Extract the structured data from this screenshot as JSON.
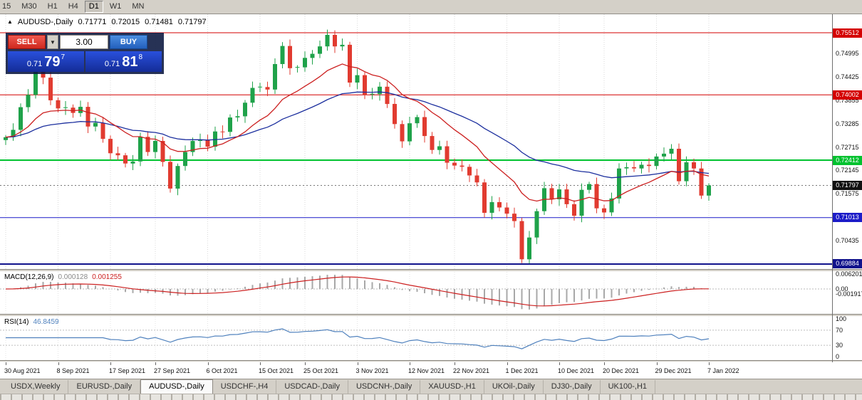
{
  "toolbar": {
    "timeframes": [
      {
        "label": "15",
        "active": false
      },
      {
        "label": "M30",
        "active": false
      },
      {
        "label": "H1",
        "active": false
      },
      {
        "label": "H4",
        "active": false
      },
      {
        "label": "D1",
        "active": true
      },
      {
        "label": "W1",
        "active": false
      },
      {
        "label": "MN",
        "active": false
      }
    ]
  },
  "chart": {
    "collapse_icon": "▲",
    "symbol": "AUDUSD-,Daily",
    "open": "0.71771",
    "high": "0.72015",
    "low": "0.71481",
    "close": "0.71797",
    "colors": {
      "bull": "#1fa24a",
      "bear": "#e13b30",
      "ma_fast": "#cc2020",
      "ma_slow": "#1c2f9e"
    },
    "hlines": [
      {
        "price": 0.75512,
        "label": "0.75512",
        "color": "#d40000",
        "width": 1
      },
      {
        "price": 0.74002,
        "label": "0.74002",
        "color": "#d40000",
        "width": 1
      },
      {
        "price": 0.72412,
        "label": "0.72412",
        "color": "#00c22f",
        "width": 2
      },
      {
        "price": 0.71013,
        "label": "0.71013",
        "color": "#1c1cc8",
        "width": 1
      },
      {
        "price": 0.69884,
        "label": "0.69884",
        "color": "#10128c",
        "width": 2
      }
    ],
    "current_price": {
      "value": 0.71797,
      "label": "0.71797",
      "color": "#111111"
    },
    "price_axis": {
      "labels": [
        "0.74995",
        "0.74425",
        "0.73855",
        "0.73285",
        "0.72715",
        "0.72145",
        "0.71575",
        "0.70435"
      ]
    }
  },
  "trade_panel": {
    "sell_label": "SELL",
    "buy_label": "BUY",
    "volume": "3.00",
    "spin_down_icon": "▼",
    "sell_price": {
      "prefix": "0.71",
      "big": "79",
      "sup": "7"
    },
    "buy_price": {
      "prefix": "0.71",
      "big": "81",
      "sup": "8"
    }
  },
  "macd": {
    "name": "MACD(12,26,9)",
    "value_main": "0.000128",
    "value_signal": "0.001255",
    "params": {
      "fast": 12,
      "slow": 26,
      "signal": 9
    },
    "axis": [
      {
        "v": 0.006201,
        "label": "0.006201"
      },
      {
        "v": 0,
        "label": "0.00"
      },
      {
        "v": -0.001917,
        "label": "-0.001917"
      }
    ]
  },
  "rsi": {
    "name": "RSI(14)",
    "value": "46.8459",
    "period": 14,
    "levels": [
      {
        "v": 100,
        "label": "100",
        "dotted": false
      },
      {
        "v": 70,
        "label": "70",
        "dotted": true
      },
      {
        "v": 30,
        "label": "30",
        "dotted": true
      },
      {
        "v": 0,
        "label": "0",
        "dotted": false
      }
    ]
  },
  "chart_data": {
    "type": "candlestick",
    "symbol": "AUDUSD",
    "timeframe": "Daily",
    "first_open": 0.729,
    "ma_periods": {
      "fast": 13,
      "slow": 34
    },
    "closes": [
      0.7297,
      0.7315,
      0.737,
      0.74,
      0.7458,
      0.7442,
      0.7387,
      0.7367,
      0.7369,
      0.7356,
      0.7371,
      0.7323,
      0.7332,
      0.7293,
      0.7258,
      0.7253,
      0.7233,
      0.7238,
      0.7298,
      0.7261,
      0.7288,
      0.7237,
      0.7172,
      0.7227,
      0.7261,
      0.7288,
      0.7291,
      0.7274,
      0.7311,
      0.731,
      0.7345,
      0.7348,
      0.7381,
      0.7417,
      0.7419,
      0.7413,
      0.7475,
      0.7519,
      0.7465,
      0.7467,
      0.749,
      0.75,
      0.7518,
      0.7546,
      0.7518,
      0.7522,
      0.743,
      0.7448,
      0.74,
      0.7402,
      0.742,
      0.7378,
      0.7329,
      0.7287,
      0.7331,
      0.7346,
      0.73,
      0.7266,
      0.7275,
      0.7235,
      0.7228,
      0.7225,
      0.7204,
      0.7187,
      0.7113,
      0.7139,
      0.7126,
      0.7111,
      0.7093,
      0.7,
      0.7053,
      0.7117,
      0.7173,
      0.7146,
      0.717,
      0.7134,
      0.7106,
      0.7169,
      0.7183,
      0.7124,
      0.7114,
      0.7148,
      0.7221,
      0.7224,
      0.7221,
      0.723,
      0.7227,
      0.725,
      0.7257,
      0.7269,
      0.719,
      0.7236,
      0.7221,
      0.7155,
      0.71797
    ],
    "date_ticks": [
      {
        "i": 0,
        "label": "30 Aug 2021"
      },
      {
        "i": 7,
        "label": "8 Sep 2021"
      },
      {
        "i": 14,
        "label": "17 Sep 2021"
      },
      {
        "i": 20,
        "label": "27 Sep 2021"
      },
      {
        "i": 27,
        "label": "6 Oct 2021"
      },
      {
        "i": 34,
        "label": "15 Oct 2021"
      },
      {
        "i": 40,
        "label": "25 Oct 2021"
      },
      {
        "i": 47,
        "label": "3 Nov 2021"
      },
      {
        "i": 54,
        "label": "12 Nov 2021"
      },
      {
        "i": 60,
        "label": "22 Nov 2021"
      },
      {
        "i": 67,
        "label": "1 Dec 2021"
      },
      {
        "i": 74,
        "label": "10 Dec 2021"
      },
      {
        "i": 80,
        "label": "20 Dec 2021"
      },
      {
        "i": 87,
        "label": "29 Dec 2021"
      },
      {
        "i": 94,
        "label": "7 Jan 2022"
      }
    ]
  },
  "tabs": [
    {
      "label": "USDX,Weekly",
      "active": false
    },
    {
      "label": "EURUSD-,Daily",
      "active": false
    },
    {
      "label": "AUDUSD-,Daily",
      "active": true
    },
    {
      "label": "USDCHF-,H4",
      "active": false
    },
    {
      "label": "USDCAD-,Daily",
      "active": false
    },
    {
      "label": "USDCNH-,Daily",
      "active": false
    },
    {
      "label": "XAUUSD-,H1",
      "active": false
    },
    {
      "label": "UKOil-,Daily",
      "active": false
    },
    {
      "label": "DJ30-,Daily",
      "active": false
    },
    {
      "label": "UK100-,H1",
      "active": false
    }
  ]
}
